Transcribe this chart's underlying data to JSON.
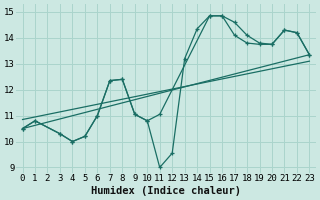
{
  "xlabel": "Humidex (Indice chaleur)",
  "bg_color": "#cce8e2",
  "grid_color": "#aad4cc",
  "line_color": "#1a6e64",
  "x_min": -0.5,
  "x_max": 23.5,
  "y_min": 8.8,
  "y_max": 15.3,
  "yticks": [
    9,
    10,
    11,
    12,
    13,
    14,
    15
  ],
  "xticks": [
    0,
    1,
    2,
    3,
    4,
    5,
    6,
    7,
    8,
    9,
    10,
    11,
    12,
    13,
    14,
    15,
    16,
    17,
    18,
    19,
    20,
    21,
    22,
    23
  ],
  "curve1_x": [
    0,
    1,
    3,
    4,
    5,
    6,
    7,
    8,
    9,
    10,
    11,
    12,
    13,
    14,
    15,
    16,
    17,
    18,
    19,
    20,
    21,
    22,
    23
  ],
  "curve1_y": [
    10.5,
    10.8,
    10.3,
    10.0,
    10.2,
    11.0,
    12.35,
    12.4,
    11.05,
    10.8,
    9.0,
    9.55,
    13.2,
    14.35,
    14.85,
    14.85,
    14.6,
    14.1,
    13.8,
    13.75,
    14.3,
    14.2,
    13.35
  ],
  "curve2_x": [
    0,
    1,
    3,
    4,
    5,
    6,
    7,
    8,
    9,
    10,
    11,
    15,
    16,
    17,
    18,
    19,
    20,
    21,
    22,
    23
  ],
  "curve2_y": [
    10.5,
    10.8,
    10.3,
    10.0,
    10.2,
    11.0,
    12.35,
    12.4,
    11.05,
    10.8,
    11.05,
    14.85,
    14.85,
    14.1,
    13.8,
    13.75,
    13.75,
    14.3,
    14.2,
    13.35
  ],
  "trend1_x": [
    0,
    23
  ],
  "trend1_y": [
    10.5,
    13.35
  ],
  "trend2_x": [
    0,
    23
  ],
  "trend2_y": [
    10.85,
    13.1
  ]
}
